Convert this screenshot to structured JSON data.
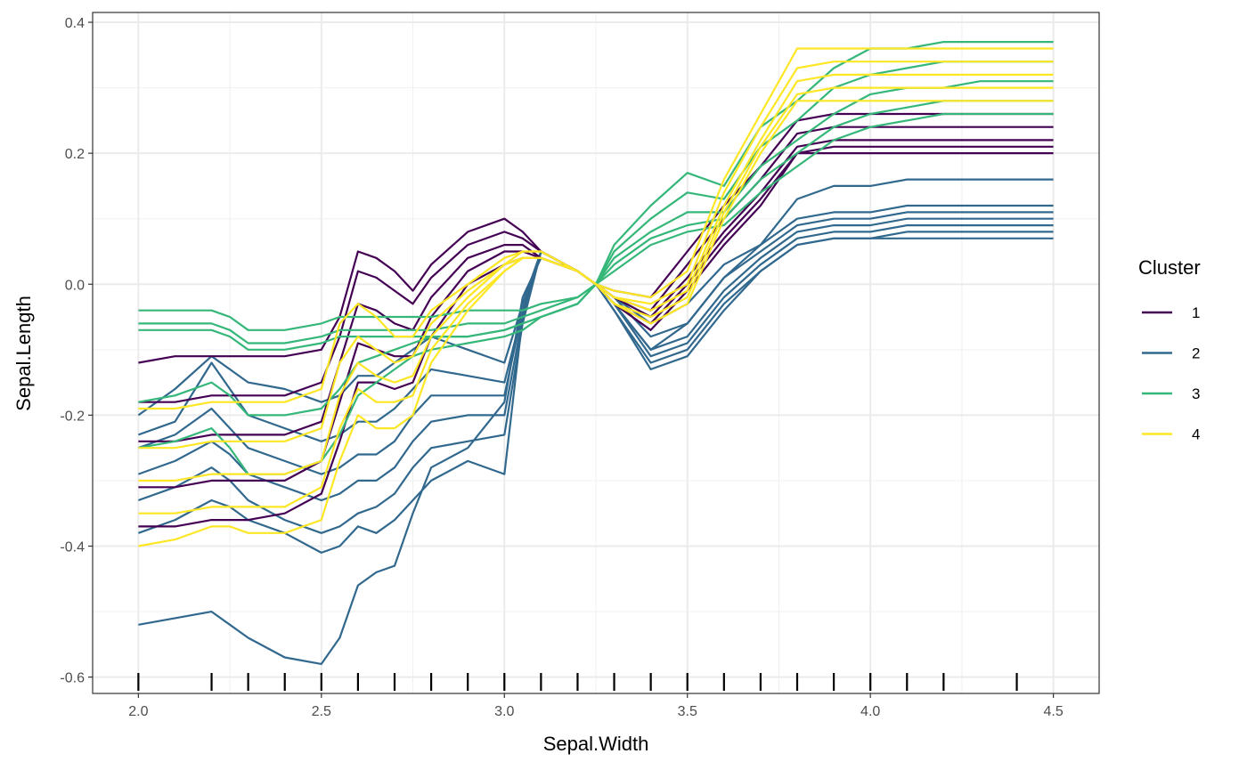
{
  "chart_data": {
    "type": "line",
    "title": "",
    "xlabel": "Sepal.Width",
    "ylabel": "Sepal.Length",
    "xlim": [
      1.875,
      4.625
    ],
    "ylim": [
      -0.625,
      0.415
    ],
    "x_ticks": [
      2.0,
      2.5,
      3.0,
      3.5,
      4.0,
      4.5
    ],
    "x_tick_labels": [
      "2.0",
      "2.5",
      "3.0",
      "3.5",
      "4.0",
      "4.5"
    ],
    "y_ticks": [
      0.4,
      0.2,
      0.0,
      -0.2,
      -0.4,
      -0.6
    ],
    "y_tick_labels": [
      "0.4",
      "0.2",
      "0.0",
      "-0.2",
      "-0.4",
      "-0.6"
    ],
    "grid": true,
    "rug_x": [
      2.0,
      2.2,
      2.3,
      2.4,
      2.5,
      2.6,
      2.7,
      2.8,
      2.9,
      3.0,
      3.1,
      3.2,
      3.3,
      3.4,
      3.5,
      3.6,
      3.7,
      3.8,
      3.9,
      4.0,
      4.1,
      4.2,
      4.4
    ],
    "legend": {
      "title": "Cluster",
      "position": "right",
      "entries": [
        {
          "label": "1",
          "color": "#440154"
        },
        {
          "label": "2",
          "color": "#31688E"
        },
        {
          "label": "3",
          "color": "#35B779"
        },
        {
          "label": "4",
          "color": "#FDE725"
        }
      ]
    },
    "x": [
      2.0,
      2.1,
      2.2,
      2.25,
      2.3,
      2.4,
      2.5,
      2.55,
      2.6,
      2.65,
      2.7,
      2.75,
      2.8,
      2.9,
      3.0,
      3.05,
      3.1,
      3.2,
      3.25,
      3.3,
      3.4,
      3.5,
      3.6,
      3.7,
      3.8,
      3.9,
      4.0,
      4.1,
      4.2,
      4.3,
      4.4,
      4.5
    ],
    "series": [
      {
        "cluster": "2",
        "values": [
          -0.52,
          -0.51,
          -0.5,
          -0.52,
          -0.54,
          -0.57,
          -0.58,
          -0.54,
          -0.46,
          -0.44,
          -0.43,
          -0.35,
          -0.28,
          -0.25,
          -0.18,
          -0.02,
          0.04,
          0.02,
          0.0,
          -0.02,
          -0.06,
          -0.03,
          0.03,
          0.06,
          0.1,
          0.11,
          0.11,
          0.12,
          0.12,
          0.12,
          0.12,
          0.12
        ]
      },
      {
        "cluster": "2",
        "values": [
          -0.38,
          -0.36,
          -0.33,
          -0.34,
          -0.36,
          -0.38,
          -0.41,
          -0.4,
          -0.37,
          -0.38,
          -0.36,
          -0.33,
          -0.3,
          -0.27,
          -0.29,
          -0.05,
          0.05,
          0.02,
          0.0,
          -0.02,
          -0.08,
          -0.06,
          0.01,
          0.05,
          0.09,
          0.1,
          0.1,
          0.11,
          0.11,
          0.11,
          0.11,
          0.11
        ]
      },
      {
        "cluster": "2",
        "values": [
          -0.33,
          -0.31,
          -0.28,
          -0.3,
          -0.33,
          -0.36,
          -0.38,
          -0.37,
          -0.35,
          -0.34,
          -0.32,
          -0.28,
          -0.25,
          -0.24,
          -0.23,
          -0.06,
          0.05,
          0.02,
          0.0,
          -0.03,
          -0.1,
          -0.08,
          -0.01,
          0.04,
          0.08,
          0.09,
          0.09,
          0.1,
          0.1,
          0.1,
          0.1,
          0.1
        ]
      },
      {
        "cluster": "2",
        "values": [
          -0.29,
          -0.27,
          -0.24,
          -0.26,
          -0.29,
          -0.31,
          -0.33,
          -0.32,
          -0.3,
          -0.3,
          -0.28,
          -0.24,
          -0.21,
          -0.2,
          -0.2,
          -0.05,
          0.05,
          0.02,
          0.0,
          -0.03,
          -0.11,
          -0.09,
          -0.02,
          0.03,
          0.07,
          0.08,
          0.08,
          0.09,
          0.09,
          0.09,
          0.09,
          0.09
        ]
      },
      {
        "cluster": "2",
        "values": [
          -0.25,
          -0.23,
          -0.19,
          -0.22,
          -0.25,
          -0.27,
          -0.29,
          -0.28,
          -0.26,
          -0.26,
          -0.24,
          -0.2,
          -0.17,
          -0.17,
          -0.17,
          -0.04,
          0.05,
          0.02,
          0.0,
          -0.04,
          -0.12,
          -0.1,
          -0.03,
          0.02,
          0.06,
          0.07,
          0.07,
          0.08,
          0.08,
          0.08,
          0.08,
          0.08
        ]
      },
      {
        "cluster": "2",
        "values": [
          -0.23,
          -0.21,
          -0.12,
          -0.16,
          -0.2,
          -0.22,
          -0.24,
          -0.23,
          -0.21,
          -0.21,
          -0.19,
          -0.16,
          -0.13,
          -0.14,
          -0.15,
          -0.04,
          0.05,
          0.02,
          0.0,
          -0.04,
          -0.13,
          -0.11,
          -0.04,
          0.02,
          0.06,
          0.07,
          0.07,
          0.07,
          0.07,
          0.07,
          0.07,
          0.07
        ]
      },
      {
        "cluster": "2",
        "values": [
          -0.2,
          -0.16,
          -0.11,
          -0.13,
          -0.15,
          -0.16,
          -0.18,
          -0.17,
          -0.14,
          -0.14,
          -0.12,
          -0.1,
          -0.08,
          -0.1,
          -0.12,
          -0.03,
          0.05,
          0.02,
          0.0,
          -0.03,
          -0.1,
          -0.06,
          0.01,
          0.06,
          0.13,
          0.15,
          0.15,
          0.16,
          0.16,
          0.16,
          0.16,
          0.16
        ]
      },
      {
        "cluster": "1",
        "values": [
          -0.12,
          -0.11,
          -0.11,
          -0.11,
          -0.11,
          -0.11,
          -0.1,
          -0.05,
          0.05,
          0.04,
          0.02,
          -0.01,
          0.03,
          0.08,
          0.1,
          0.08,
          0.05,
          0.02,
          0.0,
          -0.01,
          -0.02,
          0.05,
          0.12,
          0.18,
          0.25,
          0.26,
          0.26,
          0.26,
          0.26,
          0.26,
          0.26,
          0.26
        ]
      },
      {
        "cluster": "1",
        "values": [
          -0.18,
          -0.18,
          -0.17,
          -0.17,
          -0.17,
          -0.17,
          -0.15,
          -0.08,
          0.02,
          0.01,
          -0.01,
          -0.03,
          0.01,
          0.06,
          0.08,
          0.07,
          0.05,
          0.02,
          0.0,
          -0.02,
          -0.04,
          0.03,
          0.1,
          0.16,
          0.23,
          0.24,
          0.24,
          0.24,
          0.24,
          0.24,
          0.24,
          0.24
        ]
      },
      {
        "cluster": "1",
        "values": [
          -0.24,
          -0.24,
          -0.23,
          -0.23,
          -0.23,
          -0.23,
          -0.21,
          -0.12,
          -0.03,
          -0.04,
          -0.06,
          -0.07,
          -0.02,
          0.04,
          0.06,
          0.06,
          0.04,
          0.02,
          0.0,
          -0.02,
          -0.05,
          0.01,
          0.08,
          0.14,
          0.21,
          0.22,
          0.22,
          0.22,
          0.22,
          0.22,
          0.22,
          0.22
        ]
      },
      {
        "cluster": "1",
        "values": [
          -0.31,
          -0.31,
          -0.3,
          -0.3,
          -0.3,
          -0.3,
          -0.27,
          -0.18,
          -0.09,
          -0.1,
          -0.11,
          -0.11,
          -0.05,
          0.02,
          0.05,
          0.05,
          0.04,
          0.02,
          0.0,
          -0.03,
          -0.06,
          0.0,
          0.07,
          0.13,
          0.2,
          0.21,
          0.21,
          0.21,
          0.21,
          0.21,
          0.21,
          0.21
        ]
      },
      {
        "cluster": "1",
        "values": [
          -0.37,
          -0.37,
          -0.36,
          -0.36,
          -0.36,
          -0.35,
          -0.32,
          -0.24,
          -0.15,
          -0.15,
          -0.16,
          -0.15,
          -0.08,
          0.0,
          0.03,
          0.04,
          0.04,
          0.02,
          0.0,
          -0.03,
          -0.07,
          -0.01,
          0.06,
          0.12,
          0.2,
          0.2,
          0.2,
          0.2,
          0.2,
          0.2,
          0.2,
          0.2
        ]
      },
      {
        "cluster": "3",
        "values": [
          -0.04,
          -0.04,
          -0.04,
          -0.05,
          -0.07,
          -0.07,
          -0.06,
          -0.05,
          -0.05,
          -0.05,
          -0.05,
          -0.05,
          -0.05,
          -0.04,
          -0.04,
          -0.04,
          -0.03,
          -0.02,
          0.0,
          0.06,
          0.12,
          0.17,
          0.15,
          0.24,
          0.28,
          0.33,
          0.36,
          0.36,
          0.37,
          0.37,
          0.37,
          0.37
        ]
      },
      {
        "cluster": "3",
        "values": [
          -0.06,
          -0.06,
          -0.06,
          -0.07,
          -0.09,
          -0.09,
          -0.08,
          -0.07,
          -0.07,
          -0.07,
          -0.07,
          -0.07,
          -0.07,
          -0.06,
          -0.06,
          -0.05,
          -0.04,
          -0.02,
          0.0,
          0.05,
          0.1,
          0.14,
          0.13,
          0.21,
          0.25,
          0.3,
          0.32,
          0.33,
          0.34,
          0.34,
          0.34,
          0.34
        ]
      },
      {
        "cluster": "3",
        "values": [
          -0.07,
          -0.07,
          -0.07,
          -0.08,
          -0.1,
          -0.1,
          -0.09,
          -0.08,
          -0.08,
          -0.08,
          -0.08,
          -0.08,
          -0.08,
          -0.08,
          -0.07,
          -0.06,
          -0.05,
          -0.03,
          0.0,
          0.04,
          0.08,
          0.11,
          0.11,
          0.18,
          0.22,
          0.26,
          0.29,
          0.3,
          0.3,
          0.31,
          0.31,
          0.31
        ]
      },
      {
        "cluster": "3",
        "values": [
          -0.18,
          -0.17,
          -0.15,
          -0.17,
          -0.2,
          -0.2,
          -0.19,
          -0.16,
          -0.12,
          -0.11,
          -0.1,
          -0.09,
          -0.08,
          -0.08,
          -0.07,
          -0.06,
          -0.05,
          -0.03,
          0.0,
          0.03,
          0.07,
          0.09,
          0.1,
          0.16,
          0.2,
          0.24,
          0.26,
          0.27,
          0.28,
          0.28,
          0.28,
          0.28
        ]
      },
      {
        "cluster": "3",
        "values": [
          -0.25,
          -0.24,
          -0.22,
          -0.25,
          -0.29,
          -0.29,
          -0.27,
          -0.23,
          -0.17,
          -0.15,
          -0.13,
          -0.11,
          -0.1,
          -0.09,
          -0.08,
          -0.07,
          -0.05,
          -0.03,
          0.0,
          0.02,
          0.06,
          0.08,
          0.09,
          0.14,
          0.18,
          0.22,
          0.24,
          0.25,
          0.26,
          0.26,
          0.26,
          0.26
        ]
      },
      {
        "cluster": "4",
        "values": [
          -0.19,
          -0.19,
          -0.18,
          -0.18,
          -0.18,
          -0.18,
          -0.16,
          -0.06,
          -0.03,
          -0.05,
          -0.08,
          -0.08,
          -0.04,
          0.0,
          0.04,
          0.05,
          0.05,
          0.02,
          0.0,
          -0.01,
          -0.02,
          0.02,
          0.16,
          0.26,
          0.36,
          0.36,
          0.36,
          0.36,
          0.36,
          0.36,
          0.36,
          0.36
        ]
      },
      {
        "cluster": "4",
        "values": [
          -0.25,
          -0.25,
          -0.24,
          -0.24,
          -0.24,
          -0.24,
          -0.22,
          -0.12,
          -0.08,
          -0.1,
          -0.12,
          -0.11,
          -0.06,
          -0.01,
          0.03,
          0.05,
          0.05,
          0.02,
          0.0,
          -0.02,
          -0.03,
          0.0,
          0.14,
          0.24,
          0.33,
          0.34,
          0.34,
          0.34,
          0.34,
          0.34,
          0.34,
          0.34
        ]
      },
      {
        "cluster": "4",
        "values": [
          -0.3,
          -0.3,
          -0.29,
          -0.29,
          -0.29,
          -0.29,
          -0.27,
          -0.17,
          -0.12,
          -0.14,
          -0.15,
          -0.14,
          -0.08,
          -0.02,
          0.03,
          0.04,
          0.04,
          0.02,
          0.0,
          -0.02,
          -0.04,
          -0.01,
          0.12,
          0.22,
          0.31,
          0.32,
          0.32,
          0.32,
          0.32,
          0.32,
          0.32,
          0.32
        ]
      },
      {
        "cluster": "4",
        "values": [
          -0.35,
          -0.35,
          -0.34,
          -0.34,
          -0.34,
          -0.34,
          -0.31,
          -0.22,
          -0.16,
          -0.18,
          -0.18,
          -0.17,
          -0.1,
          -0.03,
          0.02,
          0.04,
          0.04,
          0.02,
          0.0,
          -0.03,
          -0.05,
          -0.02,
          0.11,
          0.21,
          0.29,
          0.3,
          0.3,
          0.3,
          0.3,
          0.3,
          0.3,
          0.3
        ]
      },
      {
        "cluster": "4",
        "values": [
          -0.4,
          -0.39,
          -0.37,
          -0.37,
          -0.38,
          -0.38,
          -0.36,
          -0.27,
          -0.2,
          -0.22,
          -0.22,
          -0.2,
          -0.12,
          -0.04,
          0.02,
          0.04,
          0.04,
          0.02,
          0.0,
          -0.03,
          -0.06,
          -0.03,
          0.1,
          0.2,
          0.28,
          0.28,
          0.28,
          0.28,
          0.28,
          0.28,
          0.28,
          0.28
        ]
      }
    ]
  }
}
